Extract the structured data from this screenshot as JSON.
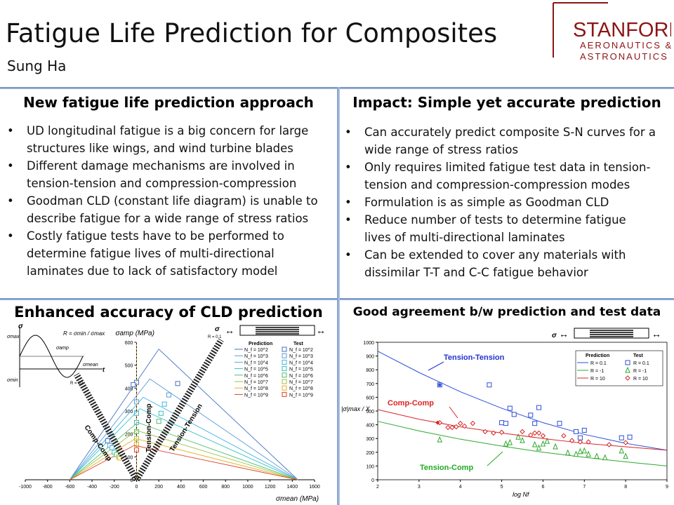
{
  "header": {
    "title": "Fatigue Life Prediction for Composites",
    "author": "Sung Ha",
    "logo_main": "STANFORD",
    "logo_line2": "AERONAUTICS &",
    "logo_line3": "ASTRONAUTICS",
    "logo_color": "#8c1515"
  },
  "left_top": {
    "title": "New fatigue life prediction approach",
    "bullets": [
      [
        "UD longitudinal fatigue is a big concern for large",
        "structures like wings, and wind turbine blades"
      ],
      [
        "Different damage mechanisms are involved in",
        "tension-tension and compression-compression"
      ],
      [
        "Goodman CLD (constant life diagram) is unable to",
        "describe fatigue for a wide range of stress ratios"
      ],
      [
        "Costly fatigue tests have to be performed to",
        "determine fatigue lives of multi-directional",
        "laminates due to lack of satisfactory model"
      ]
    ]
  },
  "right_top": {
    "title": "Impact: Simple yet accurate prediction",
    "bullets": [
      [
        "Can accurately predict composite S-N curves for a",
        "wide range of stress ratios"
      ],
      [
        "Only requires limited fatigue test data in tension-",
        "tension and compression-compression  modes"
      ],
      [
        "Formulation is as simple as Goodman CLD"
      ],
      [
        "Reduce number of tests to determine fatigue",
        "lives of multi-directional laminates"
      ],
      [
        "Can be extended to cover any materials with",
        "dissimilar T-T and C-C fatigue behavior"
      ]
    ]
  },
  "left_chart_title": "Enhanced accuracy of CLD prediction",
  "right_chart_title": "Good agreement b/w prediction and test data",
  "chart_data": [
    {
      "type": "line",
      "title": "Enhanced accuracy of CLD prediction",
      "ylabel": "σamp (MPa)",
      "xlabel": "σmean (MPa)",
      "xlim": [
        -1000,
        1600
      ],
      "ylim": [
        0,
        600
      ],
      "x_ticks": [
        -1000,
        -800,
        -600,
        -400,
        -200,
        0,
        200,
        400,
        600,
        800,
        1000,
        1200,
        1400,
        1600
      ],
      "y_ticks": [
        0,
        100,
        200,
        300,
        400,
        500,
        600
      ],
      "legend_pred_header": "Prediction",
      "legend_test_header": "Test",
      "inset_labels": {
        "sigma_max": "σmax",
        "sigma_amp": "σamp",
        "sigma_mean": "σmean",
        "sigma_min": "σmin",
        "t": "t",
        "R_def": "R = σmin / σmax",
        "sigma": "σ",
        "R_pos": "R = 0.1",
        "R_neg": "R = 10"
      },
      "region_labels": [
        "Tension-Comp",
        "Tension-Tension",
        "Comp-Comp"
      ],
      "UTS": 1450,
      "UCS": -600,
      "series": [
        {
          "name": "N_f = 10^2",
          "color": "#4472c4",
          "peak": [
            200,
            570
          ],
          "test": [
            [
              0,
              425
            ],
            [
              -30,
              415
            ],
            [
              370,
              420
            ]
          ]
        },
        {
          "name": "N_f = 10^3",
          "color": "#5b9bd5",
          "peak": [
            120,
            440
          ],
          "test": [
            [
              0,
              340
            ],
            [
              290,
              370
            ]
          ]
        },
        {
          "name": "N_f = 10^4",
          "color": "#41b0e6",
          "peak": [
            60,
            360
          ],
          "test": [
            [
              0,
              290
            ],
            [
              250,
              330
            ]
          ]
        },
        {
          "name": "N_f = 10^5",
          "color": "#33c1c1",
          "peak": [
            30,
            310
          ],
          "test": [
            [
              0,
              250
            ],
            [
              220,
              290
            ]
          ]
        },
        {
          "name": "N_f = 10^6",
          "color": "#4fbf6b",
          "peak": [
            10,
            250
          ],
          "test": [
            [
              0,
              210
            ],
            [
              200,
              255
            ]
          ]
        },
        {
          "name": "N_f = 10^7",
          "color": "#9bc34a",
          "peak": [
            0,
            215
          ],
          "test": [
            [
              0,
              180
            ]
          ]
        },
        {
          "name": "N_f = 10^8",
          "color": "#e6b020",
          "peak": [
            -10,
            180
          ],
          "test": [
            [
              0,
              155
            ]
          ]
        },
        {
          "name": "N_f = 10^9",
          "color": "#e0402a",
          "peak": [
            -20,
            150
          ],
          "test": [
            [
              0,
              130
            ]
          ]
        }
      ],
      "test_points_cc": [
        [
          -260,
          170
        ],
        [
          -240,
          150
        ],
        [
          -220,
          140
        ],
        [
          -200,
          120
        ],
        [
          -180,
          110
        ],
        [
          -160,
          100
        ],
        [
          -150,
          95
        ]
      ]
    },
    {
      "type": "scatter",
      "title": "Good agreement b/w prediction and test data",
      "ylabel": "|σ|max / X",
      "xlabel": "log Nf",
      "xlim": [
        2,
        9
      ],
      "ylim": [
        0,
        1000
      ],
      "x_ticks": [
        2,
        3,
        4,
        5,
        6,
        7,
        8,
        9
      ],
      "y_ticks": [
        0,
        100,
        200,
        300,
        400,
        500,
        600,
        700,
        800,
        900,
        1000
      ],
      "legend_pred_header": "Prediction",
      "legend_test_header": "Test",
      "annotations": [
        "Tension-Tension",
        "Comp-Comp",
        "Tension-Comp"
      ],
      "annotation_colors": [
        "#2233cc",
        "#dd2222",
        "#22aa22"
      ],
      "series": [
        {
          "name": "R = 0.1",
          "color": "#2e4fd6",
          "marker": "square",
          "curve": [
            [
              2,
              935
            ],
            [
              3,
              780
            ],
            [
              4,
              640
            ],
            [
              5,
              520
            ],
            [
              6,
              415
            ],
            [
              7,
              330
            ],
            [
              8,
              265
            ],
            [
              9,
              215
            ]
          ],
          "test": [
            [
              3.5,
              690
            ],
            [
              4.7,
              690
            ],
            [
              5.0,
              415
            ],
            [
              5.1,
              410
            ],
            [
              5.2,
              520
            ],
            [
              5.3,
              475
            ],
            [
              5.7,
              470
            ],
            [
              5.8,
              410
            ],
            [
              5.9,
              525
            ],
            [
              6.4,
              410
            ],
            [
              6.8,
              350
            ],
            [
              6.9,
              305
            ],
            [
              7.0,
              360
            ],
            [
              7.9,
              305
            ],
            [
              8.1,
              310
            ]
          ]
        },
        {
          "name": "R = -1",
          "color": "#2ea82e",
          "marker": "triangle",
          "curve": [
            [
              2,
              425
            ],
            [
              3,
              355
            ],
            [
              4,
              295
            ],
            [
              5,
              245
            ],
            [
              6,
              200
            ],
            [
              7,
              163
            ],
            [
              8,
              130
            ],
            [
              9,
              100
            ]
          ],
          "test": [
            [
              3.5,
              290
            ],
            [
              5.1,
              260
            ],
            [
              5.2,
              270
            ],
            [
              5.4,
              310
            ],
            [
              5.5,
              285
            ],
            [
              5.8,
              255
            ],
            [
              5.9,
              230
            ],
            [
              6.0,
              260
            ],
            [
              6.1,
              280
            ],
            [
              6.3,
              240
            ],
            [
              6.6,
              195
            ],
            [
              6.8,
              185
            ],
            [
              6.9,
              205
            ],
            [
              7.0,
              210
            ],
            [
              7.1,
              185
            ],
            [
              7.3,
              170
            ],
            [
              7.5,
              160
            ],
            [
              7.9,
              210
            ],
            [
              8.0,
              170
            ]
          ]
        },
        {
          "name": "R = 10",
          "color": "#d62728",
          "marker": "diamond",
          "curve": [
            [
              2,
              510
            ],
            [
              3,
              440
            ],
            [
              4,
              385
            ],
            [
              5,
              340
            ],
            [
              6,
              300
            ],
            [
              7,
              265
            ],
            [
              8,
              240
            ],
            [
              9,
              215
            ]
          ],
          "test": [
            [
              3.5,
              415
            ],
            [
              3.7,
              380
            ],
            [
              3.8,
              380
            ],
            [
              3.9,
              385
            ],
            [
              4.0,
              410
            ],
            [
              4.1,
              390
            ],
            [
              4.3,
              410
            ],
            [
              4.6,
              350
            ],
            [
              4.8,
              340
            ],
            [
              5.0,
              345
            ],
            [
              5.5,
              350
            ],
            [
              5.7,
              325
            ],
            [
              5.8,
              340
            ],
            [
              5.9,
              340
            ],
            [
              6.0,
              320
            ],
            [
              6.5,
              320
            ],
            [
              6.7,
              285
            ],
            [
              6.9,
              275
            ],
            [
              7.1,
              275
            ],
            [
              7.6,
              255
            ],
            [
              8.0,
              270
            ]
          ]
        }
      ]
    }
  ]
}
